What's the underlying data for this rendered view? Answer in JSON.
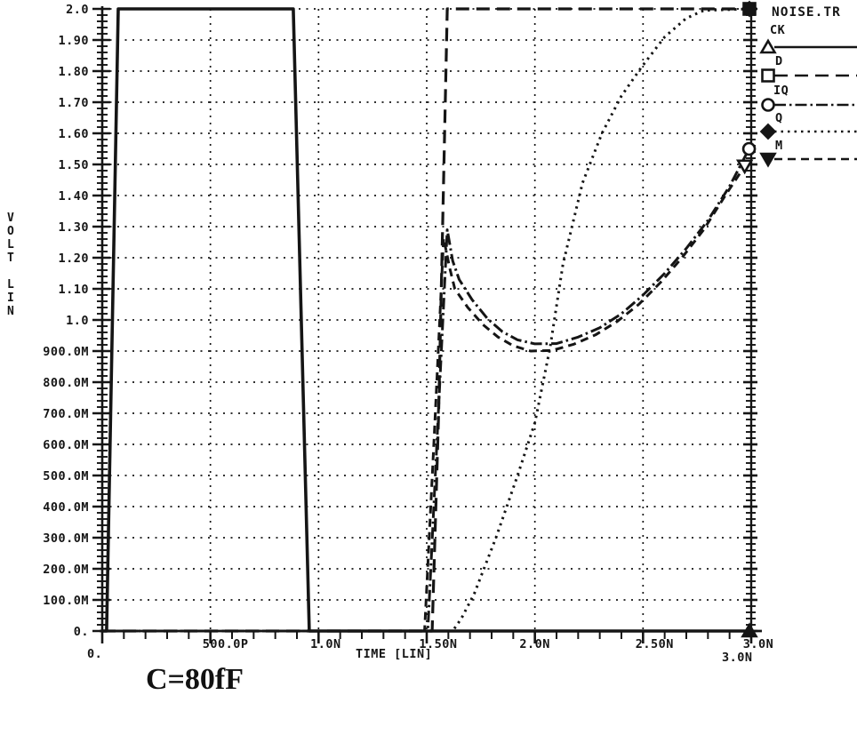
{
  "title": "C=80fF",
  "colors": {
    "ink": "#151515",
    "bg": "#ffffff"
  },
  "legend": {
    "title": "NOISE.TR",
    "entries": [
      {
        "label": "CK",
        "marker": "triangle-up",
        "line": "solid"
      },
      {
        "label": "D",
        "marker": "square",
        "line": "long-dash"
      },
      {
        "label": "IQ",
        "marker": "circle",
        "line": "dash-dot"
      },
      {
        "label": "Q",
        "marker": "diamond",
        "line": "dotted"
      },
      {
        "label": "M",
        "marker": "triangle-down",
        "line": "dashed"
      }
    ]
  },
  "chart_data": {
    "type": "line",
    "title": "NOISE.TR",
    "xlabel": "TIME [LIN]",
    "ylabel": "VOLT LIN",
    "x_origin_label": "0.",
    "x_end_label": "3.0N",
    "xlim_ns": [
      0,
      3.0
    ],
    "ylim_v": [
      0,
      2.0
    ],
    "grid": true,
    "y_ticks": [
      "2.0",
      "1.90",
      "1.80",
      "1.70",
      "1.60",
      "1.50",
      "1.40",
      "1.30",
      "1.20",
      "1.10",
      "1.0",
      "900.0M",
      "800.0M",
      "700.0M",
      "600.0M",
      "500.0M",
      "400.0M",
      "300.0M",
      "200.0M",
      "100.0M",
      "0."
    ],
    "x_ticks": [
      {
        "t": 0.5,
        "label": "500.0P",
        "dx": 17
      },
      {
        "t": 1.0,
        "label": "1.0N",
        "dx": 8
      },
      {
        "t": 1.5,
        "label": "1.50N",
        "dx": 13
      },
      {
        "t": 2.0,
        "label": "2.0N",
        "dx": 0
      },
      {
        "t": 2.5,
        "label": "2.50N",
        "dx": 13
      },
      {
        "t": 3.0,
        "label": "3.0N",
        "dx": 8
      }
    ],
    "series": [
      {
        "name": "CK",
        "line": "solid",
        "width": 3.6,
        "end_marker": "triangle-up",
        "points": [
          [
            0,
            0
          ],
          [
            0.02,
            0
          ],
          [
            0.074,
            2.0
          ],
          [
            0.883,
            2.0
          ],
          [
            0.957,
            0
          ],
          [
            3.0,
            0
          ]
        ]
      },
      {
        "name": "D",
        "line": "long-dash",
        "width": 3.2,
        "end_marker": "square",
        "points": [
          [
            0,
            0
          ],
          [
            1.525,
            0
          ],
          [
            1.555,
            0.7
          ],
          [
            1.595,
            2.0
          ],
          [
            3.0,
            2.0
          ]
        ]
      },
      {
        "name": "IQ",
        "line": "dash-dot",
        "width": 3.0,
        "end_marker": "circle",
        "points": [
          [
            0,
            0
          ],
          [
            1.505,
            0
          ],
          [
            1.55,
            0.65
          ],
          [
            1.595,
            1.29
          ],
          [
            1.62,
            1.19
          ],
          [
            1.65,
            1.13
          ],
          [
            1.71,
            1.065
          ],
          [
            1.78,
            1.005
          ],
          [
            1.85,
            0.962
          ],
          [
            1.92,
            0.936
          ],
          [
            2.0,
            0.923
          ],
          [
            2.1,
            0.924
          ],
          [
            2.2,
            0.945
          ],
          [
            2.3,
            0.975
          ],
          [
            2.4,
            1.02
          ],
          [
            2.5,
            1.08
          ],
          [
            2.6,
            1.15
          ],
          [
            2.7,
            1.23
          ],
          [
            2.8,
            1.32
          ],
          [
            2.9,
            1.43
          ],
          [
            2.99,
            1.55
          ]
        ]
      },
      {
        "name": "Q",
        "line": "dotted",
        "width": 3.0,
        "end_marker": "diamond",
        "points": [
          [
            0,
            0
          ],
          [
            1.62,
            0
          ],
          [
            1.66,
            0.04
          ],
          [
            1.72,
            0.12
          ],
          [
            1.82,
            0.3
          ],
          [
            1.92,
            0.5
          ],
          [
            2.0,
            0.67
          ],
          [
            2.07,
            0.91
          ],
          [
            2.13,
            1.18
          ],
          [
            2.22,
            1.44
          ],
          [
            2.31,
            1.6
          ],
          [
            2.4,
            1.72
          ],
          [
            2.49,
            1.81
          ],
          [
            2.6,
            1.91
          ],
          [
            2.7,
            1.97
          ],
          [
            2.78,
            1.995
          ],
          [
            3.0,
            2.0
          ]
        ]
      },
      {
        "name": "M",
        "line": "dashed",
        "width": 3.0,
        "end_marker": "triangle-down",
        "points": [
          [
            0,
            0
          ],
          [
            1.49,
            0
          ],
          [
            1.535,
            0.63
          ],
          [
            1.578,
            1.263
          ],
          [
            1.605,
            1.17
          ],
          [
            1.63,
            1.1
          ],
          [
            1.69,
            1.04
          ],
          [
            1.76,
            0.985
          ],
          [
            1.83,
            0.945
          ],
          [
            1.9,
            0.917
          ],
          [
            1.98,
            0.9
          ],
          [
            2.08,
            0.902
          ],
          [
            2.18,
            0.922
          ],
          [
            2.28,
            0.952
          ],
          [
            2.38,
            0.995
          ],
          [
            2.48,
            1.05
          ],
          [
            2.58,
            1.12
          ],
          [
            2.68,
            1.2
          ],
          [
            2.78,
            1.29
          ],
          [
            2.88,
            1.4
          ],
          [
            2.97,
            1.495
          ]
        ]
      }
    ]
  }
}
